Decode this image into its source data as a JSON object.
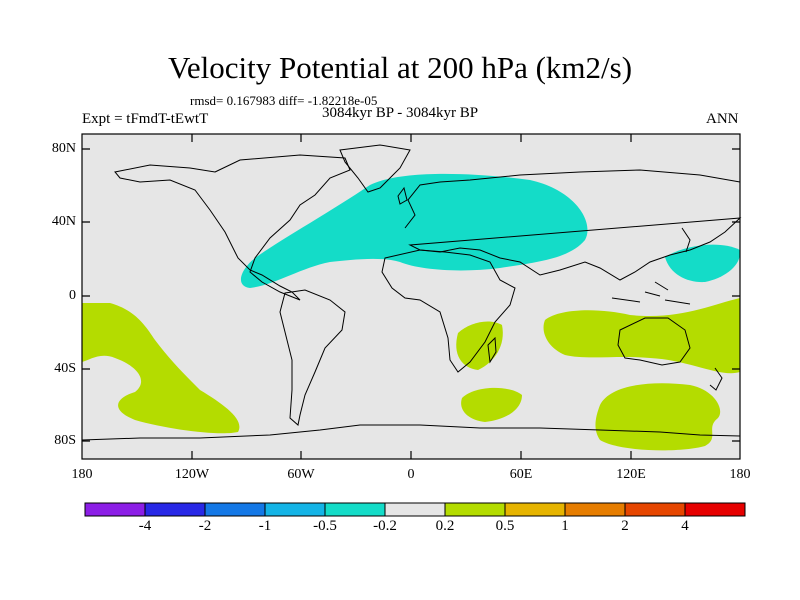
{
  "title": "Velocity Potential at 200 hPa (km2/s)",
  "stats": "rmsd= 0.167983  diff= -1.82218e-05",
  "expt": "Expt = tFmdT-tEwtT",
  "period": "3084kyr BP - 3084kyr BP",
  "season": "ANN",
  "axes": {
    "lat_labels": [
      "80N",
      "40N",
      "0",
      "40S",
      "80S"
    ],
    "lon_labels": [
      "180",
      "120W",
      "60W",
      "0",
      "60E",
      "120E",
      "180"
    ]
  },
  "colorbar": {
    "colors": [
      "#8c1ee6",
      "#2828e6",
      "#1478e6",
      "#14b4e6",
      "#14dcc8",
      "#e6e6e6",
      "#b4dc00",
      "#e6b400",
      "#e67d00",
      "#e64600",
      "#e60000"
    ],
    "labels": [
      "-4",
      "-2",
      "-1",
      "-0.5",
      "-0.2",
      "0.2",
      "0.5",
      "1",
      "2",
      "4"
    ]
  },
  "colors": {
    "background": "#e6e6e6",
    "negative_shade": "#14dcc8",
    "positive_shade": "#b4dc00",
    "coast": "#000000"
  }
}
